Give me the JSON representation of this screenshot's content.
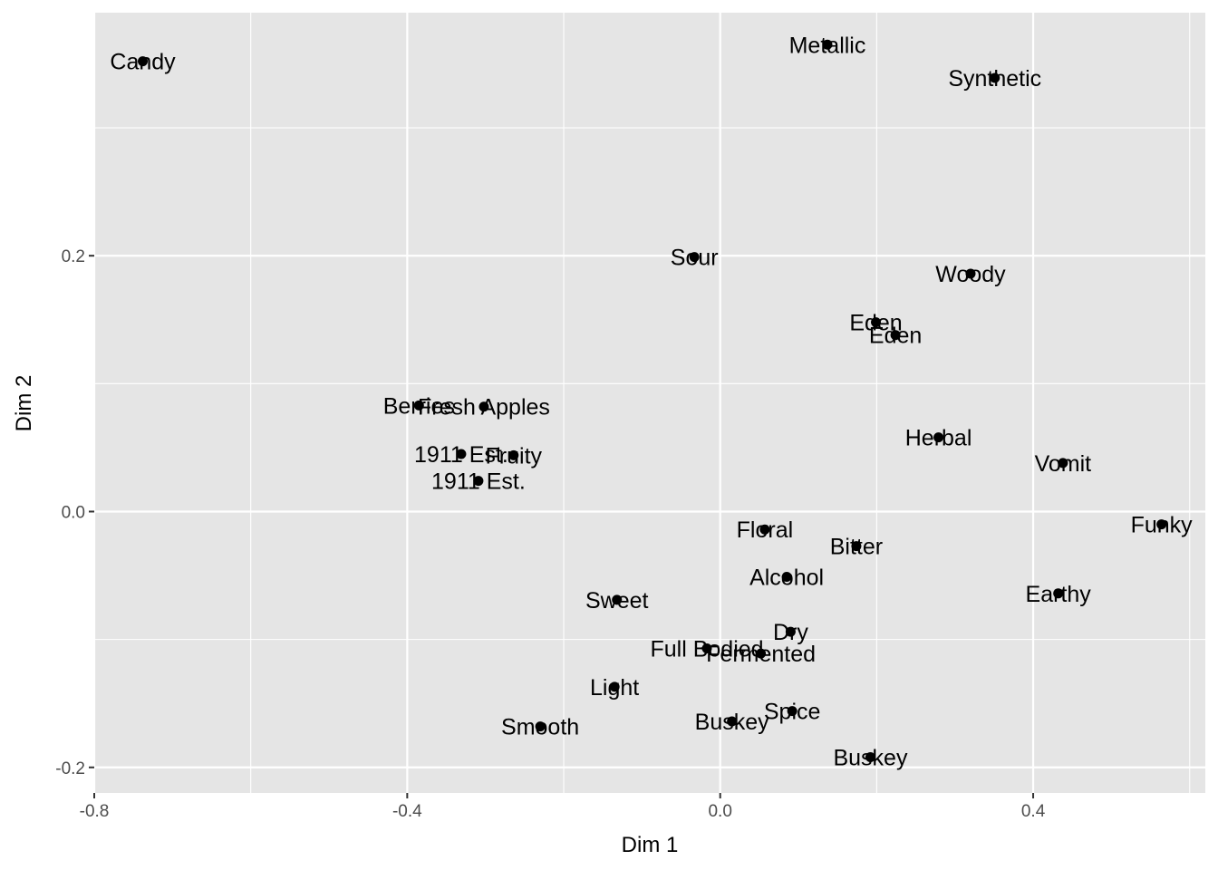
{
  "chart_data": {
    "type": "scatter",
    "title": "",
    "xlabel": "Dim 1",
    "ylabel": "Dim 2",
    "xlim": [
      -0.8,
      0.62
    ],
    "ylim": [
      -0.22,
      0.39
    ],
    "x_ticks": [
      -0.8,
      -0.4,
      0.0,
      0.4
    ],
    "x_tick_labels": [
      "-0.8",
      "-0.4",
      "0.0",
      "0.4"
    ],
    "y_ticks": [
      -0.2,
      0.0,
      0.2
    ],
    "y_tick_labels": [
      "-0.2",
      "0.0",
      "0.2"
    ],
    "grid": true,
    "legend": "none",
    "panel_color": "#e5e5e5",
    "grid_color": "#ffffff",
    "point_color": "#000000",
    "points": [
      {
        "label": "Candy",
        "x": -0.738,
        "y": 0.352
      },
      {
        "label": "Metallic",
        "x": 0.137,
        "y": 0.365
      },
      {
        "label": "Synthetic",
        "x": 0.351,
        "y": 0.339
      },
      {
        "label": "Sour",
        "x": -0.033,
        "y": 0.199
      },
      {
        "label": "Woody",
        "x": 0.32,
        "y": 0.186
      },
      {
        "label": "Eden",
        "x": 0.199,
        "y": 0.148
      },
      {
        "label": "Eden",
        "x": 0.224,
        "y": 0.138
      },
      {
        "label": "Berries",
        "x": -0.385,
        "y": 0.083
      },
      {
        "label": "Fresh Apples",
        "x": -0.302,
        "y": 0.082
      },
      {
        "label": "1911 Est.",
        "x": -0.331,
        "y": 0.045
      },
      {
        "label": "Fruity",
        "x": -0.264,
        "y": 0.044
      },
      {
        "label": "1911 Est.",
        "x": -0.309,
        "y": 0.024
      },
      {
        "label": "Herbal",
        "x": 0.279,
        "y": 0.058
      },
      {
        "label": "Vomit",
        "x": 0.438,
        "y": 0.038
      },
      {
        "label": "Funky",
        "x": 0.564,
        "y": -0.01
      },
      {
        "label": "Floral",
        "x": 0.057,
        "y": -0.014
      },
      {
        "label": "Bitter",
        "x": 0.174,
        "y": -0.027
      },
      {
        "label": "Alcohol",
        "x": 0.085,
        "y": -0.051
      },
      {
        "label": "Earthy",
        "x": 0.432,
        "y": -0.064
      },
      {
        "label": "Sweet",
        "x": -0.132,
        "y": -0.069
      },
      {
        "label": "Dry",
        "x": 0.09,
        "y": -0.094
      },
      {
        "label": "Full Bodied",
        "x": -0.017,
        "y": -0.107
      },
      {
        "label": "Fermented",
        "x": 0.052,
        "y": -0.111
      },
      {
        "label": "Light",
        "x": -0.135,
        "y": -0.137
      },
      {
        "label": "Smooth",
        "x": -0.23,
        "y": -0.168
      },
      {
        "label": "Spice",
        "x": 0.092,
        "y": -0.156
      },
      {
        "label": "Buskey",
        "x": 0.015,
        "y": -0.164
      },
      {
        "label": "Buskey",
        "x": 0.192,
        "y": -0.192
      }
    ]
  }
}
